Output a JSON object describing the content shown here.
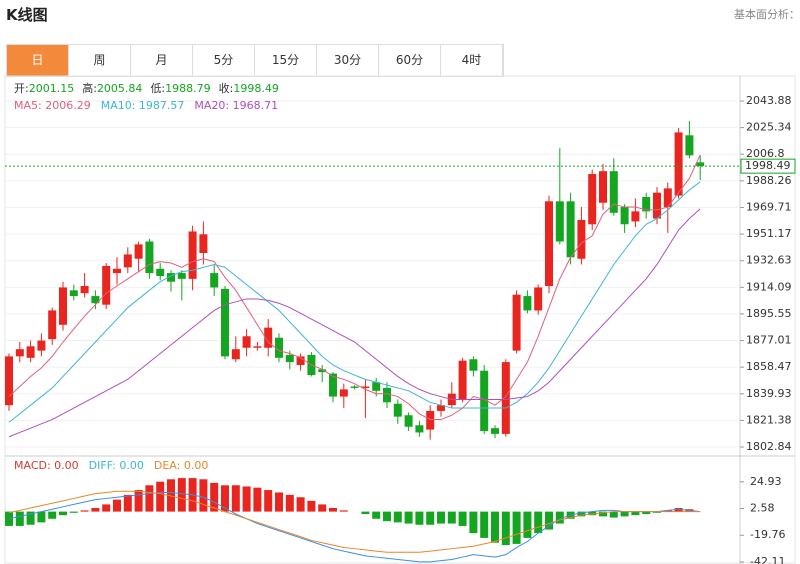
{
  "header": {
    "title": "K线图",
    "link": "基本面分析："
  },
  "tabs": [
    "日",
    "周",
    "月",
    "5分",
    "15分",
    "30分",
    "60分",
    "4时"
  ],
  "active_tab": 0,
  "chart_data": [
    {
      "type": "candlestick",
      "ohlc_info": [
        {
          "label": "开:",
          "value": 2001.15
        },
        {
          "label": "高:",
          "value": 2005.84
        },
        {
          "label": "低:",
          "value": 1988.79
        },
        {
          "label": "收:",
          "value": 1998.49
        }
      ],
      "up_color": "#e8251e",
      "down_color": "#14a620",
      "open": [
        1832,
        1866,
        1865,
        1870,
        1878,
        1888,
        1912,
        1910,
        1908,
        1902,
        1924,
        1928,
        1934,
        1946,
        1927,
        1924,
        1924,
        1920,
        1938,
        1924,
        1913,
        1864,
        1872,
        1872,
        1872,
        1879,
        1867,
        1860,
        1867,
        1857,
        1854,
        1838,
        1845,
        1844,
        1848,
        1844,
        1833,
        1825,
        1818,
        1815,
        1828,
        1832,
        1836,
        1864,
        1856,
        1816,
        1812,
        1870,
        1908,
        1898,
        1915,
        1974,
        1974,
        1934,
        1958,
        1973,
        1995,
        1970,
        1960,
        1977,
        1962,
        1970,
        1978,
        2020,
        2001.15
      ],
      "high": [
        1868,
        1876,
        1877,
        1882,
        1900,
        1918,
        1916,
        1924,
        1912,
        1931,
        1935,
        1942,
        1946,
        1948,
        1931,
        1926,
        1926,
        1957,
        1960,
        1930,
        1915,
        1880,
        1885,
        1876,
        1892,
        1882,
        1870,
        1868,
        1869,
        1860,
        1855,
        1847,
        1846,
        1850,
        1851,
        1848,
        1836,
        1827,
        1821,
        1832,
        1836,
        1848,
        1865,
        1866,
        1860,
        1818,
        1864,
        1912,
        1912,
        1916,
        1978,
        2011,
        1980,
        1970,
        1996,
        2000,
        2004,
        1972,
        1976,
        1980,
        1984,
        1987,
        2025,
        2030,
        2005.84
      ],
      "low": [
        1828,
        1862,
        1862,
        1866,
        1874,
        1884,
        1905,
        1907,
        1899,
        1899,
        1916,
        1924,
        1925,
        1920,
        1919,
        1911,
        1905,
        1912,
        1930,
        1908,
        1864,
        1862,
        1866,
        1870,
        1866,
        1862,
        1857,
        1856,
        1852,
        1848,
        1834,
        1830,
        1843,
        1823,
        1838,
        1830,
        1819,
        1814,
        1810,
        1808,
        1824,
        1830,
        1834,
        1852,
        1812,
        1809,
        1810,
        1868,
        1896,
        1895,
        1910,
        1944,
        1930,
        1930,
        1954,
        1968,
        1964,
        1952,
        1956,
        1962,
        1958,
        1952,
        1976,
        2004,
        1988.79
      ],
      "close": [
        1866,
        1871,
        1873,
        1877,
        1898,
        1914,
        1908,
        1915,
        1903,
        1929,
        1927,
        1937,
        1944,
        1924,
        1922,
        1918,
        1920,
        1953,
        1951,
        1914,
        1866,
        1871,
        1880,
        1873,
        1886,
        1865,
        1862,
        1866,
        1853,
        1855,
        1838,
        1843,
        1844,
        1845,
        1842,
        1834,
        1824,
        1817,
        1813,
        1828,
        1832,
        1840,
        1863,
        1856,
        1814,
        1812,
        1862,
        1909,
        1898,
        1914,
        1974,
        1946,
        1935,
        1961,
        1993,
        1995,
        1966,
        1958,
        1967,
        1967,
        1980,
        1983,
        2022,
        2006,
        1998.49
      ],
      "series": [
        {
          "name": "MA5",
          "legend_label": "MA5: 2006.29",
          "color": "#e0607e",
          "values": [
            1838,
            1845,
            1852,
            1858,
            1866,
            1876,
            1885,
            1894,
            1902,
            1910,
            1915,
            1920,
            1925,
            1930,
            1932,
            1931,
            1928,
            1932,
            1934,
            1932,
            1921,
            1912,
            1900,
            1888,
            1876,
            1870,
            1868,
            1865,
            1860,
            1857,
            1852,
            1850,
            1847,
            1843,
            1840,
            1840,
            1838,
            1833,
            1826,
            1822,
            1822,
            1825,
            1830,
            1838,
            1836,
            1832,
            1838,
            1850,
            1862,
            1880,
            1900,
            1920,
            1935,
            1945,
            1950,
            1965,
            1972,
            1970,
            1970,
            1968,
            1968,
            1970,
            1980,
            1990,
            2006.29
          ]
        },
        {
          "name": "MA10",
          "legend_label": "MA10: 1987.57",
          "color": "#3fb4d6",
          "values": [
            1820,
            1826,
            1832,
            1838,
            1844,
            1852,
            1860,
            1868,
            1876,
            1884,
            1892,
            1900,
            1906,
            1912,
            1918,
            1922,
            1925,
            1926,
            1928,
            1930,
            1928,
            1922,
            1916,
            1910,
            1904,
            1898,
            1890,
            1882,
            1874,
            1866,
            1860,
            1856,
            1853,
            1850,
            1848,
            1846,
            1844,
            1842,
            1838,
            1834,
            1832,
            1830,
            1830,
            1830,
            1830,
            1830,
            1830,
            1834,
            1840,
            1848,
            1858,
            1870,
            1882,
            1894,
            1906,
            1918,
            1930,
            1940,
            1950,
            1958,
            1962,
            1968,
            1975,
            1982,
            1987.57
          ]
        },
        {
          "name": "MA20",
          "legend_label": "MA20: 1968.71",
          "color": "#b04cc0",
          "values": [
            1810,
            1813,
            1816,
            1819,
            1822,
            1826,
            1830,
            1834,
            1838,
            1842,
            1846,
            1850,
            1856,
            1862,
            1868,
            1874,
            1880,
            1886,
            1892,
            1898,
            1902,
            1904,
            1906,
            1906,
            1905,
            1903,
            1900,
            1896,
            1892,
            1888,
            1884,
            1880,
            1876,
            1870,
            1864,
            1858,
            1852,
            1847,
            1843,
            1840,
            1838,
            1836,
            1836,
            1836,
            1836,
            1836,
            1836,
            1837,
            1838,
            1842,
            1848,
            1856,
            1864,
            1872,
            1880,
            1888,
            1896,
            1904,
            1912,
            1920,
            1930,
            1942,
            1954,
            1962,
            1968.71
          ]
        }
      ],
      "ylim": [
        1797.3,
        2058.5
      ],
      "yticks": [
        2043.88,
        2025.34,
        2006.8,
        1988.26,
        1969.71,
        1951.17,
        1932.63,
        1914.09,
        1895.55,
        1877.01,
        1858.47,
        1839.93,
        1821.38,
        1802.84
      ],
      "grid": true
    },
    {
      "type": "macd",
      "legend": [
        {
          "text": "MACD: 0.00",
          "color": "#d43a2f"
        },
        {
          "text": "DIFF: 0.00",
          "color": "#3fb4d6"
        },
        {
          "text": "DEA: 0.00",
          "color": "#e8862a"
        }
      ],
      "values": [
        -12,
        -12,
        -11,
        -9,
        -6,
        -3,
        -1,
        1,
        3,
        6,
        10,
        14,
        18,
        22,
        25,
        27,
        28,
        28,
        27,
        24,
        22,
        22,
        21,
        20,
        18,
        16,
        14,
        12,
        9,
        6,
        3,
        1,
        0,
        -2,
        -6,
        -8,
        -9,
        -10,
        -11,
        -11,
        -10,
        -10,
        -12,
        -18,
        -22,
        -26,
        -28,
        -27,
        -22,
        -18,
        -15,
        -10,
        -6,
        -4,
        -3,
        -4,
        -5,
        -4,
        -3,
        -2,
        -1,
        1,
        3,
        2,
        0
      ],
      "up_color": "#e8251e",
      "down_color": "#14a620",
      "series": [
        {
          "name": "DIFF",
          "color": "#3a8ee6",
          "values": [
            -6,
            -4,
            -2,
            0,
            2,
            4,
            6,
            8,
            10,
            11,
            12,
            13,
            14,
            15,
            16,
            16,
            15,
            14,
            12,
            8,
            3,
            -2,
            -6,
            -10,
            -13,
            -16,
            -19,
            -22,
            -25,
            -28,
            -31,
            -33,
            -35,
            -37,
            -38,
            -39,
            -40,
            -41,
            -42,
            -42,
            -41,
            -40,
            -38,
            -36,
            -37,
            -38,
            -36,
            -30,
            -25,
            -18,
            -12,
            -6,
            -3,
            -1,
            0,
            1,
            1,
            0,
            0,
            0,
            0,
            1,
            2,
            1,
            0
          ]
        },
        {
          "name": "DEA",
          "color": "#e8862a",
          "values": [
            -1,
            1,
            3,
            5,
            7,
            9,
            11,
            13,
            15,
            16,
            17,
            17,
            17,
            16,
            15,
            13,
            11,
            9,
            6,
            3,
            0,
            -3,
            -6,
            -9,
            -12,
            -15,
            -18,
            -21,
            -24,
            -26,
            -28,
            -30,
            -31,
            -32,
            -33,
            -34,
            -34,
            -34,
            -34,
            -33,
            -32,
            -31,
            -30,
            -29,
            -27,
            -25,
            -22,
            -19,
            -16,
            -13,
            -10,
            -7,
            -5,
            -3,
            -2,
            -1,
            0,
            0,
            0,
            0,
            0,
            0,
            0,
            0,
            0
          ]
        }
      ],
      "ylim": [
        -43.8,
        44.8
      ],
      "yticks": [
        24.93,
        2.58,
        -19.76,
        -42.11
      ]
    }
  ]
}
